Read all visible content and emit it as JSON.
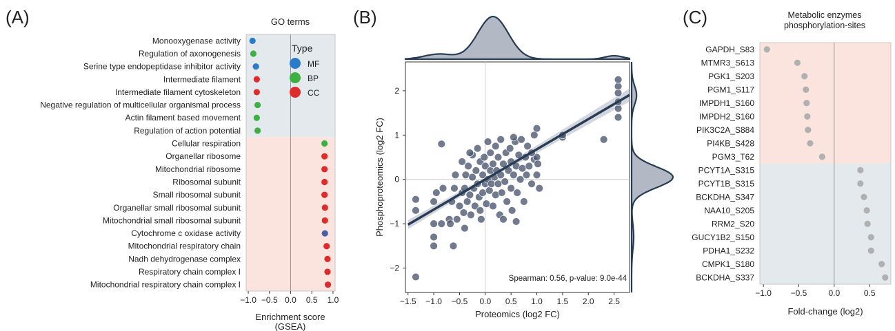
{
  "chart_data": [
    {
      "panel_label": "(A)",
      "type": "scatter",
      "title": "GO terms",
      "xlabel": "Enrichment score\n(GSEA)",
      "xticks": [
        -1.0,
        -0.5,
        0.0,
        0.5,
        1.0
      ],
      "xlim": [
        -1.05,
        1.05
      ],
      "legend": {
        "title": "Type",
        "entries": [
          "MF",
          "BP",
          "CC"
        ],
        "colors": [
          "#2c7bc9",
          "#3cb043",
          "#de2b2b"
        ],
        "placement": "top-right"
      },
      "type_colors": {
        "MF": "#2c7bc9",
        "BP": "#3cb043",
        "CC": "#de2b2b",
        "CC2": "#4a5fa8"
      },
      "background": {
        "negative": "#e4e9ee",
        "positive": "#fbe4dd"
      },
      "terms": [
        {
          "label": "Monooxygenase activity",
          "value": -0.9,
          "type": "MF"
        },
        {
          "label": "Regulation of axonogenesis",
          "value": -0.88,
          "type": "BP"
        },
        {
          "label": "Serine type endopeptidase inhibitor activity",
          "value": -0.82,
          "type": "MF"
        },
        {
          "label": "Intermediate filament",
          "value": -0.8,
          "type": "CC"
        },
        {
          "label": "Intermediate filament cytoskeleton",
          "value": -0.8,
          "type": "CC"
        },
        {
          "label": "Negative regulation of multicellular organismal process",
          "value": -0.78,
          "type": "BP"
        },
        {
          "label": "Actin filament based movement",
          "value": -0.8,
          "type": "BP"
        },
        {
          "label": "Regulation of action potential",
          "value": -0.78,
          "type": "BP"
        },
        {
          "label": "Cellular respiration",
          "value": 0.8,
          "type": "BP"
        },
        {
          "label": "Organellar ribosome",
          "value": 0.8,
          "type": "CC"
        },
        {
          "label": "Mitochondrial ribosome",
          "value": 0.8,
          "type": "CC"
        },
        {
          "label": "Ribosomal subunit",
          "value": 0.8,
          "type": "CC"
        },
        {
          "label": "Small ribosomal subunit",
          "value": 0.8,
          "type": "CC"
        },
        {
          "label": "Organellar small ribosomal subunit",
          "value": 0.81,
          "type": "CC"
        },
        {
          "label": "Mitochondrial small ribosomal subunit",
          "value": 0.81,
          "type": "CC"
        },
        {
          "label": "Cytochrome c oxidase activity",
          "value": 0.81,
          "type": "CC2"
        },
        {
          "label": "Mitochondrial respiratory chain",
          "value": 0.85,
          "type": "CC"
        },
        {
          "label": "Nadh dehydrogenase complex",
          "value": 0.87,
          "type": "CC"
        },
        {
          "label": "Respiratory chain complex I",
          "value": 0.87,
          "type": "CC"
        },
        {
          "label": "Mitochondrial respiratory chain complex I",
          "value": 0.88,
          "type": "CC"
        }
      ]
    },
    {
      "panel_label": "(B)",
      "type": "scatter",
      "xlabel": "Proteomics (log2 FC)",
      "ylabel": "Phosphoproteomics (log2 FC)",
      "xlim": [
        -1.55,
        2.8
      ],
      "ylim": [
        -2.55,
        2.65
      ],
      "xticks": [
        -1.5,
        -1.0,
        -0.5,
        0.0,
        0.5,
        1.0,
        1.5,
        2.0,
        2.5
      ],
      "yticks": [
        -2,
        -1,
        0,
        1,
        2
      ],
      "regression": {
        "slope": 0.68,
        "intercept": 0.0
      },
      "annotation": "Spearman: 0.56, p-value: 9.0e-44",
      "point_color": "#4d5a70",
      "line_color": "#283d55",
      "density_color": "#b3b9c4",
      "points": [
        [
          -1.35,
          -0.45
        ],
        [
          -1.35,
          -0.7
        ],
        [
          -1.35,
          -2.2
        ],
        [
          -1.0,
          -0.5
        ],
        [
          -1.0,
          -1.0
        ],
        [
          -1.0,
          -1.3
        ],
        [
          -1.0,
          -1.5
        ],
        [
          -0.95,
          -0.3
        ],
        [
          -0.85,
          0.8
        ],
        [
          -0.85,
          -1.0
        ],
        [
          -0.82,
          -0.2
        ],
        [
          -0.7,
          -0.9
        ],
        [
          -0.68,
          -1.0
        ],
        [
          -0.65,
          -0.5
        ],
        [
          -0.62,
          -1.5
        ],
        [
          -0.6,
          -0.2
        ],
        [
          -0.58,
          0.1
        ],
        [
          -0.55,
          -0.9
        ],
        [
          -0.5,
          -0.6
        ],
        [
          -0.45,
          -0.3
        ],
        [
          -0.45,
          0.4
        ],
        [
          -0.42,
          -0.75
        ],
        [
          -0.4,
          -0.2
        ],
        [
          -0.4,
          -1.1
        ],
        [
          -0.38,
          0.1
        ],
        [
          -0.35,
          -0.5
        ],
        [
          -0.33,
          0.3
        ],
        [
          -0.3,
          -0.35
        ],
        [
          -0.28,
          -0.8
        ],
        [
          -0.25,
          0.05
        ],
        [
          -0.25,
          0.55
        ],
        [
          -0.22,
          -0.2
        ],
        [
          -0.2,
          -0.6
        ],
        [
          -0.18,
          0.2
        ],
        [
          -0.15,
          -0.1
        ],
        [
          -0.15,
          0.7
        ],
        [
          -0.12,
          -0.4
        ],
        [
          -0.1,
          0.4
        ],
        [
          -0.08,
          -0.9
        ],
        [
          -0.05,
          0.1
        ],
        [
          -0.05,
          -0.3
        ],
        [
          -0.02,
          0.5
        ],
        [
          0.0,
          -0.1
        ],
        [
          0.0,
          0.3
        ],
        [
          0.02,
          -0.55
        ],
        [
          0.05,
          0.0
        ],
        [
          0.05,
          0.85
        ],
        [
          0.08,
          -0.25
        ],
        [
          0.1,
          0.2
        ],
        [
          0.1,
          0.6
        ],
        [
          0.12,
          -0.1
        ],
        [
          0.15,
          -0.6
        ],
        [
          0.15,
          0.35
        ],
        [
          0.18,
          0.05
        ],
        [
          0.2,
          -0.35
        ],
        [
          0.2,
          0.75
        ],
        [
          0.22,
          0.2
        ],
        [
          0.25,
          -0.1
        ],
        [
          0.25,
          0.5
        ],
        [
          0.28,
          -0.8
        ],
        [
          0.3,
          0.1
        ],
        [
          0.3,
          0.9
        ],
        [
          0.32,
          -0.3
        ],
        [
          0.35,
          0.35
        ],
        [
          0.38,
          -0.05
        ],
        [
          0.4,
          0.6
        ],
        [
          0.42,
          -0.5
        ],
        [
          0.45,
          0.2
        ],
        [
          0.48,
          0.7
        ],
        [
          0.5,
          -0.2
        ],
        [
          0.5,
          0.4
        ],
        [
          0.52,
          -0.7
        ],
        [
          0.55,
          0.1
        ],
        [
          0.58,
          0.85
        ],
        [
          0.6,
          0.3
        ],
        [
          0.62,
          -0.3
        ],
        [
          0.65,
          0.55
        ],
        [
          0.68,
          0.0
        ],
        [
          0.7,
          0.9
        ],
        [
          0.72,
          0.25
        ],
        [
          0.75,
          -0.5
        ],
        [
          0.78,
          0.5
        ],
        [
          0.8,
          0.1
        ],
        [
          0.82,
          0.75
        ],
        [
          0.85,
          0.3
        ],
        [
          0.9,
          -0.1
        ],
        [
          0.95,
          0.45
        ],
        [
          0.95,
          1.0
        ],
        [
          1.0,
          0.1
        ],
        [
          1.0,
          0.5
        ],
        [
          1.0,
          1.15
        ],
        [
          1.02,
          0.35
        ],
        [
          1.05,
          -0.2
        ],
        [
          0.55,
          0.95
        ],
        [
          0.9,
          0.6
        ],
        [
          -0.3,
          0.6
        ],
        [
          -0.1,
          -0.7
        ],
        [
          0.35,
          -0.9
        ],
        [
          0.6,
          -0.95
        ],
        [
          1.5,
          0.95
        ],
        [
          1.5,
          1.0
        ],
        [
          2.3,
          0.9
        ],
        [
          2.58,
          1.4
        ],
        [
          2.58,
          1.6
        ],
        [
          2.58,
          1.75
        ],
        [
          2.58,
          1.95
        ],
        [
          2.58,
          2.1
        ],
        [
          2.58,
          2.25
        ]
      ]
    },
    {
      "panel_label": "(C)",
      "type": "scatter",
      "title": "Metabolic enzymes\nphosphorylation-sites",
      "xlabel": "Fold-change (log2)",
      "xticks": [
        -1.0,
        -0.5,
        0.0,
        0.5
      ],
      "xlim": [
        -1.05,
        0.8
      ],
      "point_color": "#b0b0b0",
      "sites": [
        {
          "label": "GAPDH_S83",
          "value": -0.95
        },
        {
          "label": "MTMR3_S613",
          "value": -0.52
        },
        {
          "label": "PGK1_S203",
          "value": -0.42
        },
        {
          "label": "PGM1_S117",
          "value": -0.4
        },
        {
          "label": "IMPDH1_S160",
          "value": -0.39
        },
        {
          "label": "IMPDH2_S160",
          "value": -0.38
        },
        {
          "label": "PIK3C2A_S884",
          "value": -0.37
        },
        {
          "label": "PI4KB_S428",
          "value": -0.34
        },
        {
          "label": "PGM3_T62",
          "value": -0.17
        },
        {
          "label": "PCYT1A_S315",
          "value": 0.37
        },
        {
          "label": "PCYT1B_S315",
          "value": 0.37
        },
        {
          "label": "BCKDHA_S347",
          "value": 0.42
        },
        {
          "label": "NAA10_S205",
          "value": 0.46
        },
        {
          "label": "RRM2_S20",
          "value": 0.47
        },
        {
          "label": "GUCY1B2_S150",
          "value": 0.52
        },
        {
          "label": "PDHA1_S232",
          "value": 0.52
        },
        {
          "label": "CMPK1_S180",
          "value": 0.67
        },
        {
          "label": "BCKDHA_S337",
          "value": 0.72
        }
      ]
    }
  ]
}
